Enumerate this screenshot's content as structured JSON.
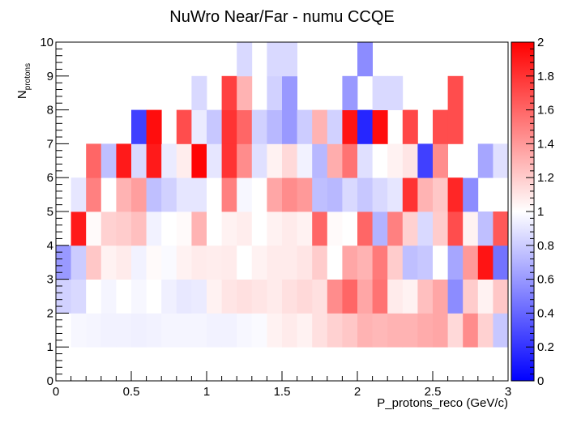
{
  "chart_data": {
    "type": "heatmap",
    "title": "NuWro Near/Far - numu CCQE",
    "xlabel": "P_protons_reco (GeV/c)",
    "ylabel_main": "N",
    "ylabel_sub": "protons",
    "xlim": [
      0,
      3
    ],
    "ylim": [
      0,
      10
    ],
    "x_ticks": [
      0,
      0.5,
      1,
      1.5,
      2,
      2.5,
      3
    ],
    "x_tick_labels": [
      "0",
      "0.5",
      "1",
      "1.5",
      "2",
      "2.5",
      "3"
    ],
    "y_ticks": [
      0,
      1,
      2,
      3,
      4,
      5,
      6,
      7,
      8,
      9,
      10
    ],
    "y_tick_labels": [
      "0",
      "1",
      "2",
      "3",
      "4",
      "5",
      "6",
      "7",
      "8",
      "9",
      "10"
    ],
    "z_range": [
      0,
      2
    ],
    "z_ticks": [
      0,
      0.2,
      0.4,
      0.6,
      0.8,
      1,
      1.2,
      1.4,
      1.6,
      1.8,
      2
    ],
    "z_tick_labels": [
      "0",
      "0.2",
      "0.4",
      "0.6",
      "0.8",
      "1",
      "1.2",
      "1.4",
      "1.6",
      "1.8",
      "2"
    ],
    "colormap": {
      "low": "#0000ff",
      "mid": "#ffffff",
      "high": "#ff0000"
    },
    "x_bins": 30,
    "y_bins": 10,
    "z_rows_from_bottom": [
      [
        1.0,
        1.0,
        1.0,
        1.0,
        1.0,
        1.0,
        1.0,
        1.0,
        1.0,
        1.0,
        1.0,
        1.0,
        1.0,
        1.0,
        1.0,
        1.0,
        1.0,
        1.0,
        1.0,
        1.0,
        1.0,
        1.0,
        1.0,
        1.0,
        1.0,
        1.0,
        1.0,
        1.0,
        1.0,
        1.0
      ],
      [
        1.0,
        0.97,
        0.96,
        0.95,
        0.95,
        0.94,
        0.95,
        0.96,
        0.96,
        0.96,
        0.95,
        0.95,
        0.97,
        0.98,
        1.05,
        1.08,
        1.05,
        1.12,
        1.18,
        1.22,
        1.3,
        1.28,
        1.3,
        1.3,
        1.33,
        1.35,
        1.15,
        1.45,
        1.18,
        0.78
      ],
      [
        0.82,
        0.85,
        1.0,
        0.96,
        1.0,
        0.97,
        1.0,
        0.94,
        0.91,
        0.92,
        1.05,
        1.1,
        1.12,
        1.1,
        1.08,
        1.12,
        1.15,
        1.12,
        1.45,
        1.6,
        1.35,
        1.55,
        1.08,
        1.05,
        1.25,
        1.35,
        0.55,
        1.2,
        1.05,
        1.22
      ],
      [
        0.6,
        0.8,
        1.22,
        1.05,
        1.08,
        0.95,
        1.02,
        0.98,
        1.05,
        1.08,
        1.07,
        1.08,
        1.0,
        1.05,
        1.08,
        1.08,
        1.1,
        1.2,
        1.0,
        1.35,
        1.3,
        1.52,
        1.2,
        0.75,
        0.78,
        1.0,
        0.65,
        1.4,
        1.92,
        0.45
      ],
      [
        1.0,
        1.9,
        1.02,
        1.18,
        1.2,
        1.25,
        0.95,
        1.0,
        1.02,
        1.3,
        1.0,
        1.05,
        1.07,
        1.0,
        1.05,
        1.08,
        1.05,
        1.6,
        1.02,
        1.0,
        1.6,
        0.7,
        1.5,
        1.18,
        0.85,
        1.2,
        1.7,
        1.05,
        0.75,
        1.65
      ],
      [
        1.0,
        0.9,
        1.5,
        1.0,
        1.3,
        1.38,
        0.75,
        0.82,
        0.9,
        0.9,
        1.0,
        1.5,
        0.97,
        1.0,
        1.35,
        1.45,
        1.4,
        0.75,
        0.72,
        0.85,
        0.78,
        0.85,
        0.9,
        1.8,
        1.3,
        1.22,
        1.85,
        0.55,
        1.0,
        1.0
      ],
      [
        1.0,
        1.0,
        1.6,
        0.75,
        1.9,
        0.85,
        1.9,
        0.92,
        1.07,
        1.98,
        0.9,
        1.8,
        1.45,
        0.88,
        1.05,
        1.15,
        0.95,
        0.72,
        1.32,
        1.55,
        0.88,
        1.0,
        1.05,
        1.1,
        0.25,
        1.45,
        1.55,
        1.0,
        0.65,
        0.88
      ],
      [
        1.0,
        1.0,
        1.0,
        1.0,
        1.0,
        0.25,
        1.95,
        1.0,
        1.7,
        0.92,
        0.78,
        1.8,
        1.6,
        0.82,
        0.72,
        0.6,
        0.8,
        1.3,
        0.82,
        1.92,
        0.15,
        1.95,
        0.9,
        1.72,
        1.0,
        1.7,
        1.7,
        1.0,
        1.0,
        1.0
      ],
      [
        1.0,
        1.0,
        1.0,
        1.0,
        1.0,
        1.0,
        1.0,
        1.0,
        1.0,
        0.85,
        1.0,
        1.75,
        1.3,
        1.0,
        0.82,
        0.6,
        1.0,
        1.0,
        1.0,
        0.6,
        1.0,
        0.85,
        0.85,
        1.0,
        1.0,
        1.0,
        1.7,
        1.0,
        1.0,
        1.0
      ],
      [
        1.0,
        1.0,
        1.0,
        1.0,
        1.0,
        1.0,
        1.0,
        1.0,
        1.0,
        1.0,
        1.0,
        1.0,
        0.85,
        1.0,
        0.85,
        0.85,
        1.0,
        1.0,
        1.0,
        1.0,
        0.55,
        1.0,
        1.0,
        1.0,
        1.0,
        1.0,
        1.0,
        1.0,
        1.0,
        1.0
      ]
    ],
    "z_mask_from_bottom": [
      [
        0,
        1,
        1,
        1,
        1,
        1,
        1,
        1,
        1,
        1,
        1,
        1,
        1,
        1,
        1,
        1,
        1,
        1,
        1,
        1,
        1,
        1,
        1,
        1,
        1,
        1,
        1,
        1,
        1,
        1
      ],
      [
        0,
        1,
        1,
        1,
        1,
        1,
        1,
        1,
        1,
        1,
        1,
        1,
        1,
        1,
        1,
        1,
        1,
        1,
        1,
        1,
        1,
        1,
        1,
        1,
        1,
        1,
        1,
        1,
        1,
        1
      ],
      [
        1,
        1,
        1,
        1,
        1,
        1,
        1,
        1,
        1,
        1,
        1,
        1,
        1,
        1,
        1,
        1,
        1,
        1,
        1,
        1,
        1,
        1,
        1,
        1,
        1,
        1,
        1,
        1,
        1,
        1
      ],
      [
        1,
        1,
        1,
        1,
        1,
        1,
        1,
        1,
        1,
        1,
        1,
        1,
        1,
        1,
        1,
        1,
        1,
        1,
        1,
        1,
        1,
        1,
        1,
        1,
        1,
        1,
        1,
        1,
        1,
        1
      ],
      [
        0,
        1,
        1,
        1,
        1,
        1,
        1,
        1,
        1,
        1,
        1,
        1,
        1,
        1,
        1,
        1,
        1,
        1,
        1,
        1,
        1,
        1,
        1,
        1,
        1,
        1,
        1,
        1,
        1,
        1
      ],
      [
        0,
        1,
        1,
        1,
        1,
        1,
        1,
        1,
        1,
        1,
        1,
        1,
        1,
        1,
        1,
        1,
        1,
        1,
        1,
        1,
        1,
        1,
        1,
        1,
        1,
        1,
        1,
        1,
        0,
        0
      ],
      [
        0,
        0,
        1,
        1,
        1,
        1,
        1,
        1,
        1,
        1,
        1,
        1,
        1,
        1,
        1,
        1,
        1,
        1,
        1,
        1,
        1,
        1,
        1,
        1,
        1,
        1,
        0,
        1,
        1,
        1
      ],
      [
        0,
        0,
        0,
        0,
        0,
        1,
        1,
        0,
        1,
        1,
        1,
        1,
        1,
        1,
        1,
        1,
        1,
        1,
        1,
        1,
        1,
        1,
        0,
        1,
        0,
        1,
        1,
        0,
        0,
        0
      ],
      [
        0,
        0,
        0,
        0,
        0,
        0,
        0,
        0,
        0,
        1,
        0,
        1,
        1,
        0,
        1,
        1,
        0,
        0,
        0,
        1,
        0,
        1,
        1,
        0,
        0,
        0,
        1,
        0,
        0,
        0
      ],
      [
        0,
        0,
        0,
        0,
        0,
        0,
        0,
        0,
        0,
        0,
        0,
        0,
        1,
        0,
        1,
        1,
        0,
        0,
        0,
        0,
        1,
        0,
        0,
        0,
        0,
        0,
        0,
        0,
        0,
        0
      ]
    ]
  }
}
